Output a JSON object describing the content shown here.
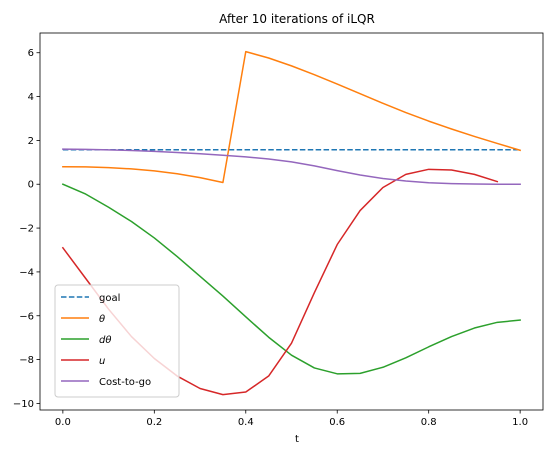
{
  "chart_data": {
    "type": "line",
    "title": "After 10 iterations of iLQR",
    "xlabel": "t",
    "ylabel": "",
    "xlim": [
      -0.05,
      1.05
    ],
    "ylim": [
      -10.3,
      6.9
    ],
    "xticks": [
      0.0,
      0.2,
      0.4,
      0.6,
      0.8,
      1.0
    ],
    "xtick_labels": [
      "0.0",
      "0.2",
      "0.4",
      "0.6",
      "0.8",
      "1.0"
    ],
    "yticks": [
      -10,
      -8,
      -6,
      -4,
      -2,
      0,
      2,
      4,
      6
    ],
    "ytick_labels": [
      "−10",
      "−8",
      "−6",
      "−4",
      "−2",
      "0",
      "2",
      "4",
      "6"
    ],
    "grid": false,
    "legend_position": "lower-left",
    "series": [
      {
        "name": "goal",
        "color": "#1f77b4",
        "dashed": true,
        "x": [
          0.0,
          1.0
        ],
        "y": [
          1.571,
          1.571
        ]
      },
      {
        "name": "θ",
        "color": "#ff7f0e",
        "dashed": false,
        "x": [
          0.0,
          0.05,
          0.1,
          0.15,
          0.2,
          0.25,
          0.3,
          0.35,
          0.4,
          0.45,
          0.5,
          0.55,
          0.6,
          0.65,
          0.7,
          0.75,
          0.8,
          0.85,
          0.9,
          0.95,
          1.0
        ],
        "y": [
          0.8,
          0.79,
          0.76,
          0.7,
          0.61,
          0.48,
          0.3,
          0.08,
          6.05,
          5.76,
          5.4,
          5.0,
          4.57,
          4.13,
          3.69,
          3.27,
          2.88,
          2.52,
          2.18,
          1.86,
          1.55
        ]
      },
      {
        "name": "dθ",
        "color": "#2ca02c",
        "dashed": false,
        "x": [
          0.0,
          0.05,
          0.1,
          0.15,
          0.2,
          0.25,
          0.3,
          0.35,
          0.4,
          0.45,
          0.5,
          0.55,
          0.6,
          0.65,
          0.7,
          0.75,
          0.8,
          0.85,
          0.9,
          0.95,
          1.0
        ],
        "y": [
          0.0,
          -0.45,
          -1.05,
          -1.7,
          -2.45,
          -3.3,
          -4.2,
          -5.1,
          -6.05,
          -6.98,
          -7.8,
          -8.38,
          -8.65,
          -8.63,
          -8.35,
          -7.92,
          -7.42,
          -6.95,
          -6.56,
          -6.3,
          -6.2
        ]
      },
      {
        "name": "u",
        "color": "#d62728",
        "dashed": false,
        "x": [
          0.0,
          0.05,
          0.1,
          0.15,
          0.2,
          0.25,
          0.3,
          0.35,
          0.4,
          0.45,
          0.5,
          0.55,
          0.6,
          0.65,
          0.7,
          0.75,
          0.8,
          0.85,
          0.9,
          0.95
        ],
        "y": [
          -2.9,
          -4.3,
          -5.7,
          -6.95,
          -7.95,
          -8.75,
          -9.32,
          -9.6,
          -9.48,
          -8.75,
          -7.25,
          -4.95,
          -2.75,
          -1.2,
          -0.15,
          0.45,
          0.68,
          0.65,
          0.45,
          0.12
        ]
      },
      {
        "name": "Cost-to-go",
        "color": "#9467bd",
        "dashed": false,
        "x": [
          0.0,
          0.05,
          0.1,
          0.15,
          0.2,
          0.25,
          0.3,
          0.35,
          0.4,
          0.45,
          0.5,
          0.55,
          0.6,
          0.65,
          0.7,
          0.75,
          0.8,
          0.85,
          0.9,
          0.95,
          1.0
        ],
        "y": [
          1.6,
          1.59,
          1.57,
          1.54,
          1.5,
          1.45,
          1.39,
          1.32,
          1.25,
          1.15,
          1.02,
          0.84,
          0.62,
          0.42,
          0.26,
          0.15,
          0.07,
          0.03,
          0.01,
          0.0,
          0.0
        ]
      }
    ]
  }
}
